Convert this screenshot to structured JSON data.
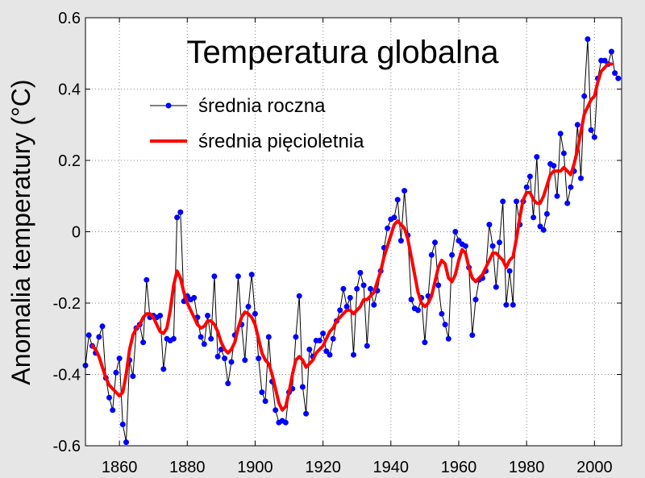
{
  "chart_data": {
    "type": "line",
    "title": "Temperatura globalna",
    "xlabel": "",
    "ylabel": "Anomalia temperatury (°C)",
    "xlim": [
      1850,
      2008
    ],
    "ylim": [
      -0.6,
      0.6
    ],
    "x_ticks": [
      1860,
      1880,
      1900,
      1920,
      1940,
      1960,
      1980,
      2000
    ],
    "y_ticks": [
      -0.6,
      -0.4,
      -0.2,
      0,
      0.2,
      0.4,
      0.6
    ],
    "y_tick_labels": [
      "-0.6",
      "-0.4",
      "-0.2",
      "0",
      "0.2",
      "0.4",
      "0.6"
    ],
    "grid": true,
    "legend_position": "top-left",
    "series": [
      {
        "name": "średnia roczna",
        "color": "#0000ff",
        "line_color": "#000000",
        "marker": "circle",
        "x": [
          1850,
          1851,
          1852,
          1853,
          1854,
          1855,
          1856,
          1857,
          1858,
          1859,
          1860,
          1861,
          1862,
          1863,
          1864,
          1865,
          1866,
          1867,
          1868,
          1869,
          1870,
          1871,
          1872,
          1873,
          1874,
          1875,
          1876,
          1877,
          1878,
          1879,
          1880,
          1881,
          1882,
          1883,
          1884,
          1885,
          1886,
          1887,
          1888,
          1889,
          1890,
          1891,
          1892,
          1893,
          1894,
          1895,
          1896,
          1897,
          1898,
          1899,
          1900,
          1901,
          1902,
          1903,
          1904,
          1905,
          1906,
          1907,
          1908,
          1909,
          1910,
          1911,
          1912,
          1913,
          1914,
          1915,
          1916,
          1917,
          1918,
          1919,
          1920,
          1921,
          1922,
          1923,
          1924,
          1925,
          1926,
          1927,
          1928,
          1929,
          1930,
          1931,
          1932,
          1933,
          1934,
          1935,
          1936,
          1937,
          1938,
          1939,
          1940,
          1941,
          1942,
          1943,
          1944,
          1945,
          1946,
          1947,
          1948,
          1949,
          1950,
          1951,
          1952,
          1953,
          1954,
          1955,
          1956,
          1957,
          1958,
          1959,
          1960,
          1961,
          1962,
          1963,
          1964,
          1965,
          1966,
          1967,
          1968,
          1969,
          1970,
          1971,
          1972,
          1973,
          1974,
          1975,
          1976,
          1977,
          1978,
          1979,
          1980,
          1981,
          1982,
          1983,
          1984,
          1985,
          1986,
          1987,
          1988,
          1989,
          1990,
          1991,
          1992,
          1993,
          1994,
          1995,
          1996,
          1997,
          1998,
          1999,
          2000,
          2001,
          2002,
          2003,
          2004,
          2005,
          2006,
          2007
        ],
        "values": [
          -0.375,
          -0.29,
          -0.32,
          -0.34,
          -0.295,
          -0.265,
          -0.41,
          -0.465,
          -0.5,
          -0.395,
          -0.355,
          -0.54,
          -0.59,
          -0.36,
          -0.405,
          -0.27,
          -0.26,
          -0.31,
          -0.135,
          -0.24,
          -0.235,
          -0.24,
          -0.235,
          -0.385,
          -0.3,
          -0.305,
          -0.3,
          0.04,
          0.055,
          -0.195,
          -0.18,
          -0.19,
          -0.185,
          -0.24,
          -0.295,
          -0.315,
          -0.235,
          -0.3,
          -0.125,
          -0.35,
          -0.33,
          -0.355,
          -0.425,
          -0.365,
          -0.29,
          -0.125,
          -0.26,
          -0.36,
          -0.21,
          -0.12,
          -0.23,
          -0.355,
          -0.45,
          -0.475,
          -0.295,
          -0.42,
          -0.5,
          -0.535,
          -0.53,
          -0.535,
          -0.45,
          -0.44,
          -0.295,
          -0.18,
          -0.435,
          -0.51,
          -0.33,
          -0.35,
          -0.305,
          -0.305,
          -0.285,
          -0.335,
          -0.345,
          -0.3,
          -0.25,
          -0.22,
          -0.16,
          -0.21,
          -0.185,
          -0.345,
          -0.16,
          -0.115,
          -0.15,
          -0.32,
          -0.16,
          -0.205,
          -0.165,
          -0.11,
          -0.045,
          0.01,
          0.035,
          0.04,
          0.09,
          -0.025,
          0.115,
          -0.01,
          -0.19,
          -0.215,
          -0.22,
          -0.185,
          -0.31,
          -0.18,
          -0.065,
          -0.03,
          -0.15,
          -0.23,
          -0.26,
          -0.3,
          -0.065,
          0.0,
          -0.025,
          -0.035,
          -0.04,
          -0.1,
          -0.29,
          -0.19,
          -0.135,
          -0.13,
          -0.11,
          0.02,
          -0.04,
          -0.155,
          -0.03,
          0.085,
          -0.205,
          -0.11,
          -0.205,
          0.085,
          0.02,
          0.085,
          0.125,
          0.155,
          0.04,
          0.21,
          0.015,
          0.005,
          0.05,
          0.19,
          0.185,
          0.1,
          0.275,
          0.22,
          0.08,
          0.125,
          0.17,
          0.3,
          0.15,
          0.38,
          0.54,
          0.285,
          0.265,
          0.43,
          0.48,
          0.48,
          0.47,
          0.505,
          0.445,
          0.43
        ]
      },
      {
        "name": "średnia pięcioletnia",
        "color": "#ff0000",
        "x": [
          1852,
          1853,
          1854,
          1855,
          1856,
          1857,
          1858,
          1859,
          1860,
          1861,
          1862,
          1863,
          1864,
          1865,
          1866,
          1867,
          1868,
          1869,
          1870,
          1871,
          1872,
          1873,
          1874,
          1875,
          1876,
          1877,
          1878,
          1879,
          1880,
          1881,
          1882,
          1883,
          1884,
          1885,
          1886,
          1887,
          1888,
          1889,
          1890,
          1891,
          1892,
          1893,
          1894,
          1895,
          1896,
          1897,
          1898,
          1899,
          1900,
          1901,
          1902,
          1903,
          1904,
          1905,
          1906,
          1907,
          1908,
          1909,
          1910,
          1911,
          1912,
          1913,
          1914,
          1915,
          1916,
          1917,
          1918,
          1919,
          1920,
          1921,
          1922,
          1923,
          1924,
          1925,
          1926,
          1927,
          1928,
          1929,
          1930,
          1931,
          1932,
          1933,
          1934,
          1935,
          1936,
          1937,
          1938,
          1939,
          1940,
          1941,
          1942,
          1943,
          1944,
          1945,
          1946,
          1947,
          1948,
          1949,
          1950,
          1951,
          1952,
          1953,
          1954,
          1955,
          1956,
          1957,
          1958,
          1959,
          1960,
          1961,
          1962,
          1963,
          1964,
          1965,
          1966,
          1967,
          1968,
          1969,
          1970,
          1971,
          1972,
          1973,
          1974,
          1975,
          1976,
          1977,
          1978,
          1979,
          1980,
          1981,
          1982,
          1983,
          1984,
          1985,
          1986,
          1987,
          1988,
          1989,
          1990,
          1991,
          1992,
          1993,
          1994,
          1995,
          1996,
          1997,
          1998,
          1999,
          2000,
          2001,
          2002,
          2003,
          2004,
          2005
        ],
        "values": [
          -0.32,
          -0.33,
          -0.35,
          -0.38,
          -0.41,
          -0.43,
          -0.44,
          -0.45,
          -0.46,
          -0.45,
          -0.4,
          -0.33,
          -0.29,
          -0.27,
          -0.26,
          -0.24,
          -0.23,
          -0.23,
          -0.24,
          -0.26,
          -0.28,
          -0.285,
          -0.27,
          -0.22,
          -0.15,
          -0.11,
          -0.13,
          -0.17,
          -0.2,
          -0.22,
          -0.24,
          -0.26,
          -0.27,
          -0.265,
          -0.25,
          -0.25,
          -0.26,
          -0.28,
          -0.31,
          -0.33,
          -0.34,
          -0.33,
          -0.31,
          -0.27,
          -0.24,
          -0.225,
          -0.23,
          -0.24,
          -0.26,
          -0.3,
          -0.34,
          -0.36,
          -0.37,
          -0.4,
          -0.44,
          -0.48,
          -0.5,
          -0.49,
          -0.45,
          -0.4,
          -0.36,
          -0.35,
          -0.36,
          -0.38,
          -0.37,
          -0.36,
          -0.34,
          -0.33,
          -0.32,
          -0.3,
          -0.28,
          -0.27,
          -0.25,
          -0.24,
          -0.23,
          -0.22,
          -0.22,
          -0.23,
          -0.22,
          -0.21,
          -0.19,
          -0.19,
          -0.18,
          -0.17,
          -0.14,
          -0.11,
          -0.07,
          -0.04,
          -0.01,
          0.02,
          0.03,
          0.02,
          0.01,
          -0.02,
          -0.07,
          -0.12,
          -0.17,
          -0.2,
          -0.21,
          -0.2,
          -0.18,
          -0.14,
          -0.1,
          -0.08,
          -0.09,
          -0.13,
          -0.14,
          -0.12,
          -0.08,
          -0.05,
          -0.06,
          -0.1,
          -0.13,
          -0.14,
          -0.13,
          -0.12,
          -0.1,
          -0.08,
          -0.06,
          -0.06,
          -0.07,
          -0.08,
          -0.1,
          -0.08,
          -0.07,
          -0.02,
          0.04,
          0.09,
          0.11,
          0.11,
          0.09,
          0.08,
          0.08,
          0.1,
          0.13,
          0.16,
          0.17,
          0.17,
          0.17,
          0.18,
          0.17,
          0.16,
          0.19,
          0.23,
          0.28,
          0.33,
          0.35,
          0.37,
          0.38,
          0.42,
          0.45,
          0.46,
          0.47,
          0.47
        ]
      }
    ]
  }
}
